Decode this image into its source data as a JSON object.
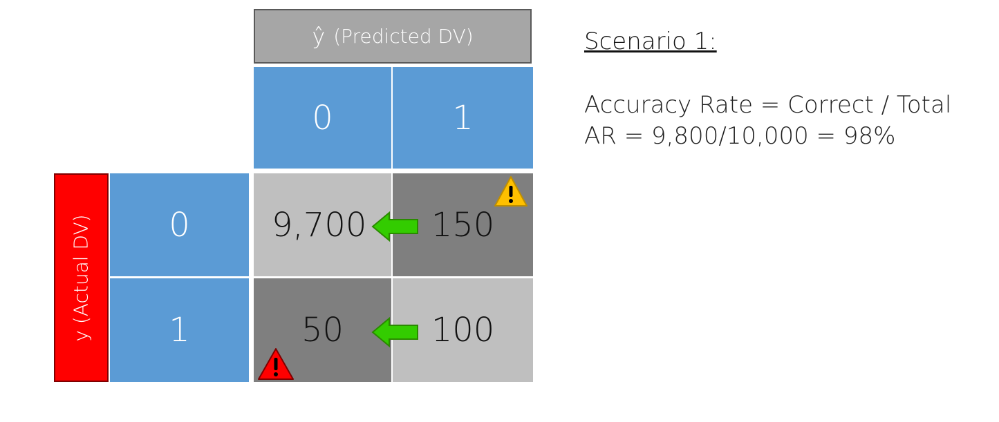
{
  "predicted_header": {
    "symbol": "ŷ",
    "label": "(Predicted DV)"
  },
  "actual_header": {
    "label": "y (Actual DV)"
  },
  "pred_columns": [
    "0",
    "1"
  ],
  "actual_rows": [
    "0",
    "1"
  ],
  "cells": {
    "r0c0": "9,700",
    "r0c1": "150",
    "r1c0": "50",
    "r1c1": "100"
  },
  "icons": {
    "arrows": "green-left-arrow-icon",
    "warning_top": "yellow-warning-icon",
    "warning_bottom": "red-warning-icon"
  },
  "colors": {
    "blue": "#5b9bd5",
    "red": "#ff0000",
    "light_gray": "#bfbfbf",
    "dark_gray": "#7f7f7f",
    "header_gray": "#a6a6a6",
    "arrow_green": "#33cc00",
    "warn_yellow": "#ffc000"
  },
  "scenario": {
    "title": "Scenario 1:",
    "line1": "Accuracy Rate = Correct / Total",
    "line2": "AR = 9,800/10,000 = 98%"
  }
}
